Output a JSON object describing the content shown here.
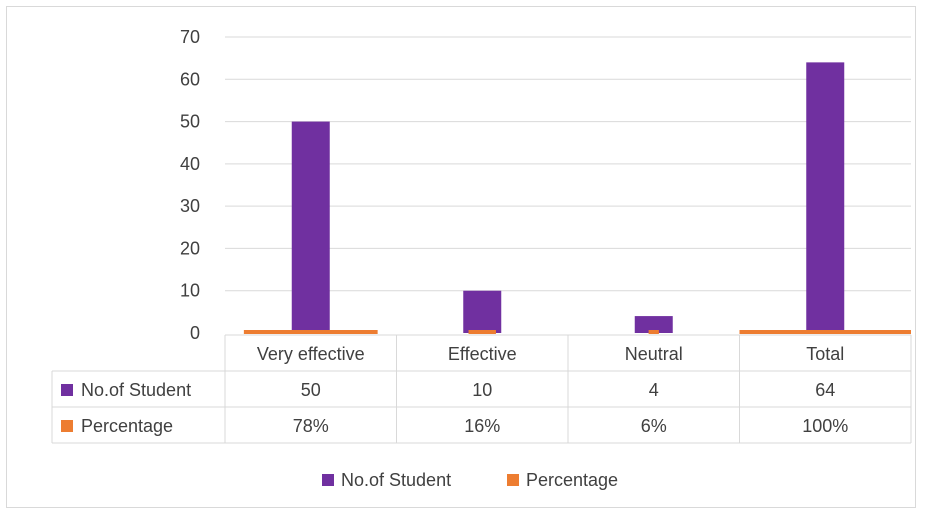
{
  "chart_data": {
    "type": "bar",
    "categories": [
      "Very effective",
      "Effective",
      "Neutral",
      "Total"
    ],
    "series": [
      {
        "name": "No.of Student",
        "values": [
          50,
          10,
          4,
          64
        ],
        "color": "#7030a0"
      },
      {
        "name": "Percentage",
        "values": [
          0.78,
          0.16,
          0.06,
          1.0
        ],
        "color": "#ed7d31"
      }
    ],
    "table": {
      "rows": [
        {
          "label": "No.of Student",
          "cells": [
            "50",
            "10",
            "4",
            "64"
          ]
        },
        {
          "label": "Percentage",
          "cells": [
            "78%",
            "16%",
            "6%",
            "100%"
          ]
        }
      ]
    },
    "ylim": [
      0,
      70
    ],
    "yticks": [
      "0",
      "10",
      "20",
      "30",
      "40",
      "50",
      "60",
      "70"
    ],
    "grid": true,
    "legend": "bottom",
    "legend_entries": [
      "No.of Student",
      "Percentage"
    ]
  }
}
